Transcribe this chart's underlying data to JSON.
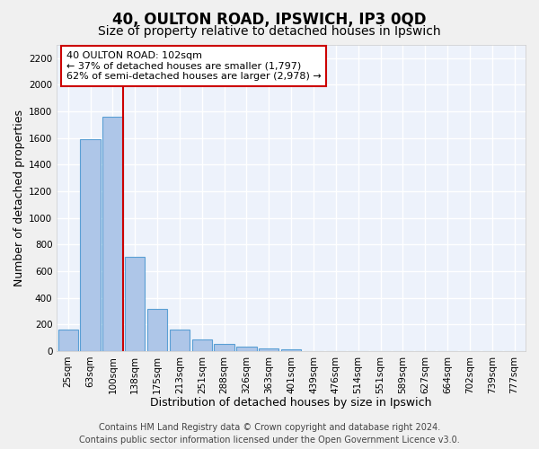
{
  "title1": "40, OULTON ROAD, IPSWICH, IP3 0QD",
  "title2": "Size of property relative to detached houses in Ipswich",
  "xlabel": "Distribution of detached houses by size in Ipswich",
  "ylabel": "Number of detached properties",
  "categories": [
    "25sqm",
    "63sqm",
    "100sqm",
    "138sqm",
    "175sqm",
    "213sqm",
    "251sqm",
    "288sqm",
    "326sqm",
    "363sqm",
    "401sqm",
    "439sqm",
    "476sqm",
    "514sqm",
    "551sqm",
    "589sqm",
    "627sqm",
    "664sqm",
    "702sqm",
    "739sqm",
    "777sqm"
  ],
  "values": [
    160,
    1590,
    1760,
    710,
    315,
    160,
    85,
    52,
    30,
    22,
    15,
    0,
    0,
    0,
    0,
    0,
    0,
    0,
    0,
    0,
    0
  ],
  "bar_color": "#aec6e8",
  "bar_edge_color": "#5a9fd4",
  "vline_color": "#cc0000",
  "annotation_text": "40 OULTON ROAD: 102sqm\n← 37% of detached houses are smaller (1,797)\n62% of semi-detached houses are larger (2,978) →",
  "annotation_box_color": "#ffffff",
  "annotation_box_edge": "#cc0000",
  "ylim": [
    0,
    2300
  ],
  "yticks": [
    0,
    200,
    400,
    600,
    800,
    1000,
    1200,
    1400,
    1600,
    1800,
    2000,
    2200
  ],
  "background_color": "#edf2fb",
  "grid_color": "#ffffff",
  "footer1": "Contains HM Land Registry data © Crown copyright and database right 2024.",
  "footer2": "Contains public sector information licensed under the Open Government Licence v3.0.",
  "title1_fontsize": 12,
  "title2_fontsize": 10,
  "xlabel_fontsize": 9,
  "ylabel_fontsize": 9,
  "tick_fontsize": 7.5,
  "footer_fontsize": 7,
  "annotation_fontsize": 8
}
